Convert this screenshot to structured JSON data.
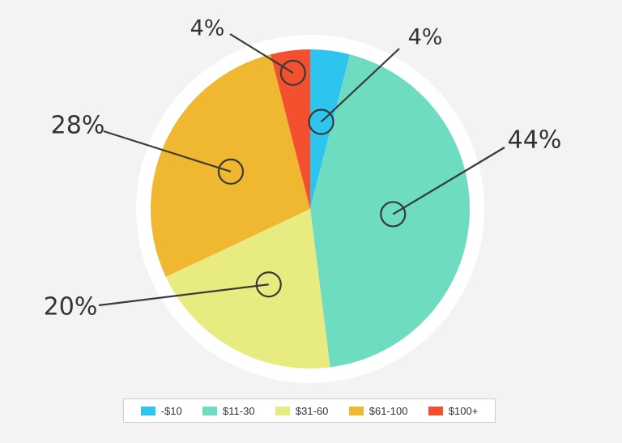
{
  "chart_data": {
    "type": "pie",
    "categories": [
      "-$10",
      "$11-30",
      "$31-60",
      "$61-100",
      "$100+"
    ],
    "values": [
      4,
      44,
      20,
      28,
      4
    ],
    "labels": [
      "4%",
      "44%",
      "20%",
      "28%",
      "4%"
    ],
    "colors": [
      "#2ec4f0",
      "#6ddcc0",
      "#e8ec80",
      "#f0b830",
      "#f2502e"
    ],
    "legend_position": "bottom",
    "title": ""
  }
}
